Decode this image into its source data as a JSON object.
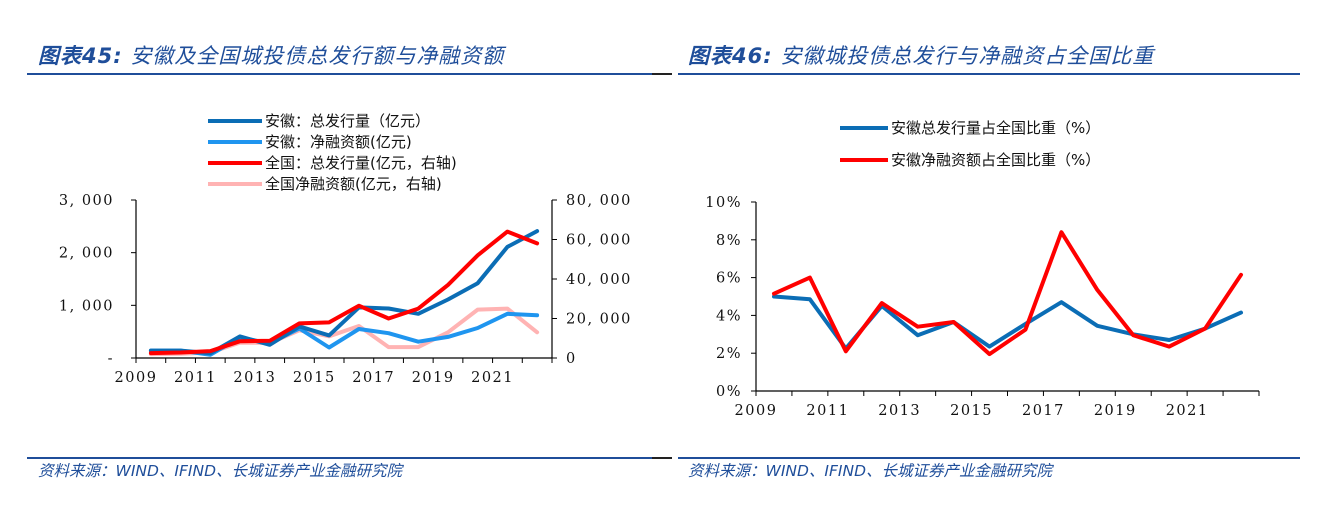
{
  "panels": [
    {
      "title_prefix": "图表45:",
      "title": "安徽及全国城投债总发行额与净融资额",
      "source": "资料来源：WIND、IFIND、长城证券产业金融研究院"
    },
    {
      "title_prefix": "图表46:",
      "title": "安徽城投债总发行与净融资占全国比重",
      "source": "资料来源：WIND、IFIND、长城证券产业金融研究院"
    }
  ],
  "chart_data": [
    {
      "type": "line",
      "title": "安徽及全国城投债总发行额与净融资额",
      "categories": [
        "2009",
        "2010",
        "2011",
        "2012",
        "2013",
        "2014",
        "2015",
        "2016",
        "2017",
        "2018",
        "2019",
        "2020",
        "2021",
        "2022"
      ],
      "x_tick_labels": [
        "2009",
        "2011",
        "2013",
        "2015",
        "2017",
        "2019",
        "2021"
      ],
      "y_left": {
        "ylim": [
          0,
          3000
        ],
        "ticks": [
          0,
          1000,
          2000,
          3000
        ],
        "tick_labels": [
          "-",
          "1, 000",
          "2, 000",
          "3, 000"
        ]
      },
      "y_right": {
        "ylim": [
          0,
          80000
        ],
        "ticks": [
          0,
          20000,
          40000,
          60000,
          80000
        ],
        "tick_labels": [
          "0",
          "20, 000",
          "40, 000",
          "60, 000",
          "80, 000"
        ]
      },
      "legend_position": "top",
      "grid": false,
      "series": [
        {
          "name": "安徽：总发行量（亿元）",
          "axis": "left",
          "color": "#0b6db5",
          "values": [
            140,
            140,
            90,
            410,
            250,
            600,
            430,
            960,
            940,
            840,
            1110,
            1420,
            2110,
            2410
          ]
        },
        {
          "name": "安徽：净融资额(亿元)",
          "axis": "left",
          "color": "#1f95ef",
          "values": [
            140,
            140,
            60,
            390,
            280,
            560,
            200,
            550,
            470,
            310,
            400,
            570,
            840,
            810
          ]
        },
        {
          "name": "全国：总发行量(亿元，右轴)",
          "axis": "right",
          "color": "#ff0000",
          "values": [
            2500,
            2800,
            3500,
            8500,
            8700,
            17500,
            18000,
            26500,
            20000,
            25000,
            37000,
            52000,
            64000,
            58000
          ]
        },
        {
          "name": "全国净融资额(亿元，右轴)",
          "axis": "right",
          "color": "#ffb3b3",
          "values": [
            2000,
            2200,
            2800,
            7800,
            7600,
            14000,
            11000,
            16200,
            5500,
            5500,
            13000,
            24500,
            25000,
            13000
          ]
        }
      ]
    },
    {
      "type": "line",
      "title": "安徽城投债总发行与净融资占全国比重",
      "categories": [
        "2009",
        "2010",
        "2011",
        "2012",
        "2013",
        "2014",
        "2015",
        "2016",
        "2017",
        "2018",
        "2019",
        "2020",
        "2021",
        "2022"
      ],
      "x_tick_labels": [
        "2009",
        "2011",
        "2013",
        "2015",
        "2017",
        "2019",
        "2021"
      ],
      "y_left": {
        "ylim": [
          0,
          10
        ],
        "ticks": [
          0,
          2,
          4,
          6,
          8,
          10
        ],
        "tick_labels": [
          "0%",
          "2%",
          "4%",
          "6%",
          "8%",
          "10%"
        ]
      },
      "ylabel": "",
      "legend_position": "top",
      "grid": false,
      "series": [
        {
          "name": "安徽总发行量占全国比重（%）",
          "axis": "left",
          "color": "#0b6db5",
          "values": [
            5.0,
            4.85,
            2.25,
            4.5,
            2.95,
            3.65,
            2.35,
            3.55,
            4.7,
            3.45,
            3.0,
            2.7,
            3.3,
            4.15
          ]
        },
        {
          "name": "安徽净融资额占全国比重（%）",
          "axis": "left",
          "color": "#ff0000",
          "values": [
            5.15,
            6.0,
            2.1,
            4.65,
            3.4,
            3.65,
            1.95,
            3.25,
            8.4,
            5.35,
            2.95,
            2.35,
            3.3,
            6.15
          ]
        }
      ]
    }
  ]
}
